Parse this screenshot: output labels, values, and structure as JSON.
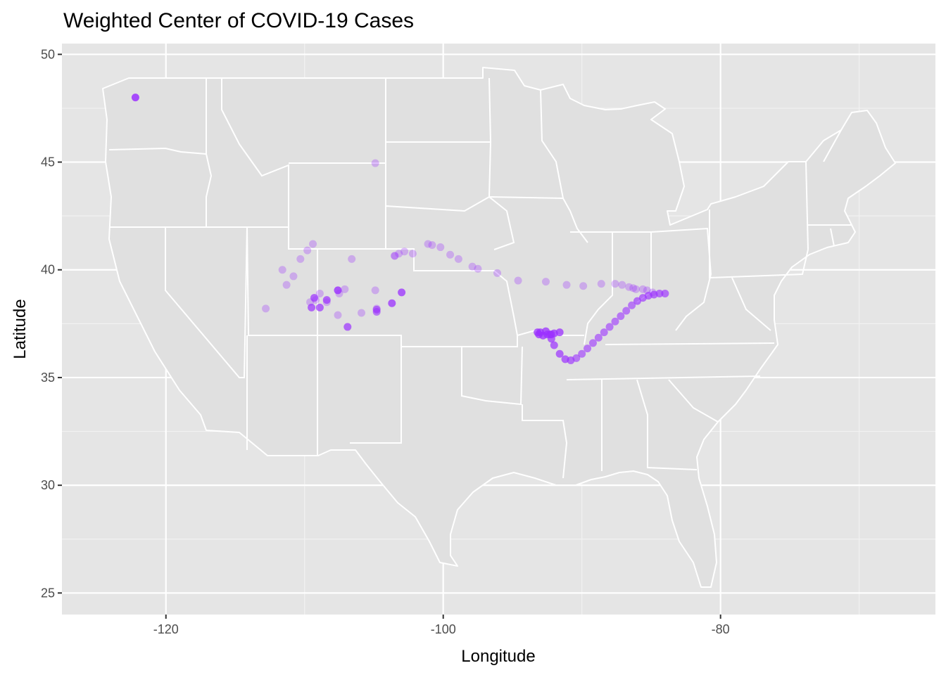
{
  "chart_data": {
    "type": "scatter",
    "title": "Weighted Center of COVID-19 Cases",
    "xlabel": "Longitude",
    "ylabel": "Latitude",
    "xlim": [
      -127.5,
      -64.5
    ],
    "ylim": [
      24,
      50.5
    ],
    "x_ticks": [
      -120,
      -100,
      -80
    ],
    "x_tick_labels": [
      "-120",
      "-100",
      "-80"
    ],
    "y_ticks": [
      25,
      30,
      35,
      40,
      45,
      50
    ],
    "y_tick_labels": [
      "25",
      "30",
      "35",
      "40",
      "45",
      "50"
    ],
    "grid": true,
    "background": "#e5e5e5",
    "point_color": "#9b30ff",
    "map_layer": "US state boundaries (light gray fill, white borders)",
    "series": [
      {
        "x": [
          -122.2,
          -104.9,
          -111.6,
          -111.3,
          -110.8,
          -110.3,
          -109.8,
          -109.4,
          -108.9,
          -109.6,
          -109.2,
          -108.4,
          -107.5,
          -107.6,
          -106.6,
          -107.1,
          -112.8,
          -105.9,
          -104.8,
          -104.9,
          -103.5,
          -103.2,
          -103.5,
          -102.8,
          -102.2,
          -101.1,
          -100.8,
          -100.2,
          -99.5,
          -98.9,
          -97.9,
          -97.5,
          -96.1,
          -94.6,
          -92.6,
          -91.1,
          -89.9,
          -88.6,
          -87.6,
          -87.1,
          -86.6,
          -86.3,
          -86.1,
          -85.6,
          -85.3,
          -84.9,
          -109.5,
          -109.3,
          -108.9,
          -108.4,
          -107.6,
          -106.9,
          -104.8,
          -104.8,
          -103.7,
          -103.0,
          -84.0,
          -84.4,
          -84.8,
          -85.2,
          -85.6,
          -86.0,
          -86.4,
          -86.8,
          -87.2,
          -87.6,
          -88.0,
          -88.4,
          -88.8,
          -89.2,
          -89.6,
          -90.0,
          -90.4,
          -90.8,
          -91.2,
          -91.6,
          -92.0,
          -92.2,
          -92.2,
          -92.3,
          -92.5,
          -92.8,
          -93.1,
          -93.2,
          -93.0,
          -92.6,
          -92.0,
          -91.6
        ],
        "y": [
          48.0,
          44.95,
          40.0,
          39.3,
          39.7,
          40.5,
          40.9,
          41.2,
          38.9,
          38.5,
          38.6,
          38.5,
          38.9,
          37.9,
          40.5,
          39.1,
          38.2,
          38.0,
          38.2,
          39.05,
          40.65,
          40.75,
          40.65,
          40.85,
          40.75,
          41.2,
          41.15,
          41.05,
          40.7,
          40.5,
          40.15,
          40.05,
          39.85,
          39.5,
          39.45,
          39.3,
          39.25,
          39.35,
          39.35,
          39.3,
          39.2,
          39.15,
          39.1,
          39.1,
          39.05,
          38.95,
          38.25,
          38.7,
          38.25,
          38.6,
          39.05,
          37.35,
          38.15,
          38.05,
          38.45,
          38.95,
          38.9,
          38.9,
          38.85,
          38.8,
          38.7,
          38.55,
          38.35,
          38.1,
          37.85,
          37.6,
          37.35,
          37.1,
          36.85,
          36.6,
          36.35,
          36.1,
          35.9,
          35.8,
          35.85,
          36.1,
          36.5,
          36.8,
          37.0,
          37.0,
          37.0,
          36.95,
          37.0,
          37.1,
          37.1,
          37.15,
          37.05,
          37.1
        ],
        "alpha": [
          0.85,
          0.3,
          0.3,
          0.3,
          0.3,
          0.3,
          0.3,
          0.3,
          0.3,
          0.3,
          0.3,
          0.3,
          0.3,
          0.3,
          0.3,
          0.3,
          0.3,
          0.3,
          0.3,
          0.3,
          0.3,
          0.3,
          0.3,
          0.3,
          0.3,
          0.3,
          0.3,
          0.3,
          0.3,
          0.3,
          0.3,
          0.3,
          0.3,
          0.3,
          0.3,
          0.3,
          0.3,
          0.3,
          0.3,
          0.3,
          0.3,
          0.3,
          0.3,
          0.3,
          0.3,
          0.3,
          0.7,
          0.7,
          0.7,
          0.7,
          0.8,
          0.7,
          0.6,
          0.6,
          0.75,
          0.75,
          0.65,
          0.65,
          0.65,
          0.65,
          0.65,
          0.65,
          0.6,
          0.6,
          0.6,
          0.6,
          0.6,
          0.6,
          0.6,
          0.6,
          0.6,
          0.6,
          0.6,
          0.65,
          0.7,
          0.7,
          0.7,
          0.7,
          0.75,
          0.75,
          0.75,
          0.75,
          0.75,
          0.75,
          0.75,
          0.75,
          0.75,
          0.75
        ]
      }
    ]
  }
}
